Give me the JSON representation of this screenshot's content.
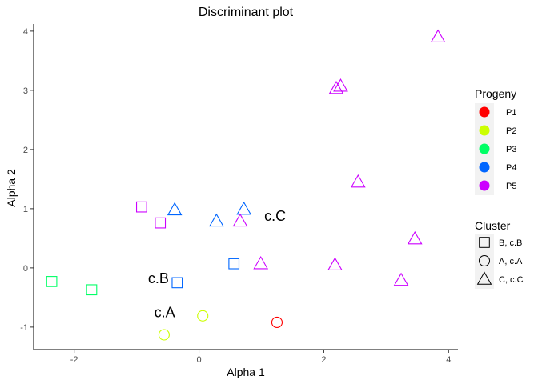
{
  "chart_data": {
    "type": "scatter",
    "title": "Discriminant plot",
    "xlabel": "Alpha 1",
    "ylabel": "Alpha 2",
    "xlim": [
      -2.65,
      4.15
    ],
    "ylim": [
      -1.38,
      4.12
    ],
    "x_ticks": [
      -2,
      0,
      2,
      4
    ],
    "y_ticks": [
      -1,
      0,
      1,
      2,
      3,
      4
    ],
    "x_tick_labels": [
      "-2",
      "0",
      "2",
      "4"
    ],
    "y_tick_labels": [
      "-1",
      "0",
      "1",
      "2",
      "3",
      "4"
    ],
    "grid": false,
    "legends": {
      "progeny": {
        "title": "Progeny",
        "position": "right",
        "items": [
          {
            "label": "P1",
            "color": "#FF0000"
          },
          {
            "label": "P2",
            "color": "#CCFF00"
          },
          {
            "label": "P3",
            "color": "#00FF66"
          },
          {
            "label": "P4",
            "color": "#0066FF"
          },
          {
            "label": "P5",
            "color": "#CC00FF"
          }
        ]
      },
      "cluster": {
        "title": "Cluster",
        "position": "right",
        "items": [
          {
            "label": "B, c.B",
            "shape": "square"
          },
          {
            "label": "A, c.A",
            "shape": "circle"
          },
          {
            "label": "C, c.C",
            "shape": "triangle"
          }
        ]
      }
    },
    "points": [
      {
        "x": 1.25,
        "y": -0.92,
        "progeny": "P1",
        "cluster": "A, c.A"
      },
      {
        "x": 0.06,
        "y": -0.81,
        "progeny": "P2",
        "cluster": "A, c.A"
      },
      {
        "x": -0.56,
        "y": -1.13,
        "progeny": "P2",
        "cluster": "A, c.A"
      },
      {
        "x": -2.36,
        "y": -0.23,
        "progeny": "P3",
        "cluster": "B, c.B"
      },
      {
        "x": -1.72,
        "y": -0.37,
        "progeny": "P3",
        "cluster": "B, c.B"
      },
      {
        "x": -0.35,
        "y": -0.25,
        "progeny": "P4",
        "cluster": "B, c.B"
      },
      {
        "x": 0.56,
        "y": 0.07,
        "progeny": "P4",
        "cluster": "B, c.B"
      },
      {
        "x": -0.39,
        "y": 0.98,
        "progeny": "P4",
        "cluster": "C, c.C"
      },
      {
        "x": 0.28,
        "y": 0.79,
        "progeny": "P4",
        "cluster": "C, c.C"
      },
      {
        "x": 0.72,
        "y": 0.99,
        "progeny": "P4",
        "cluster": "C, c.C"
      },
      {
        "x": -0.92,
        "y": 1.03,
        "progeny": "P5",
        "cluster": "B, c.B"
      },
      {
        "x": -0.62,
        "y": 0.76,
        "progeny": "P5",
        "cluster": "B, c.B"
      },
      {
        "x": 0.66,
        "y": 0.79,
        "progeny": "P5",
        "cluster": "C, c.C"
      },
      {
        "x": 0.99,
        "y": 0.07,
        "progeny": "P5",
        "cluster": "C, c.C"
      },
      {
        "x": 2.18,
        "y": 0.05,
        "progeny": "P5",
        "cluster": "C, c.C"
      },
      {
        "x": 3.24,
        "y": -0.21,
        "progeny": "P5",
        "cluster": "C, c.C"
      },
      {
        "x": 3.46,
        "y": 0.49,
        "progeny": "P5",
        "cluster": "C, c.C"
      },
      {
        "x": 2.55,
        "y": 1.45,
        "progeny": "P5",
        "cluster": "C, c.C"
      },
      {
        "x": 2.2,
        "y": 3.03,
        "progeny": "P5",
        "cluster": "C, c.C"
      },
      {
        "x": 2.27,
        "y": 3.07,
        "progeny": "P5",
        "cluster": "C, c.C"
      },
      {
        "x": 3.83,
        "y": 3.9,
        "progeny": "P5",
        "cluster": "C, c.C"
      }
    ],
    "annotations": [
      {
        "text": "c.A",
        "x": -0.55,
        "y": -0.75
      },
      {
        "text": "c.B",
        "x": -0.65,
        "y": -0.18
      },
      {
        "text": "c.C",
        "x": 1.22,
        "y": 0.88
      }
    ]
  }
}
